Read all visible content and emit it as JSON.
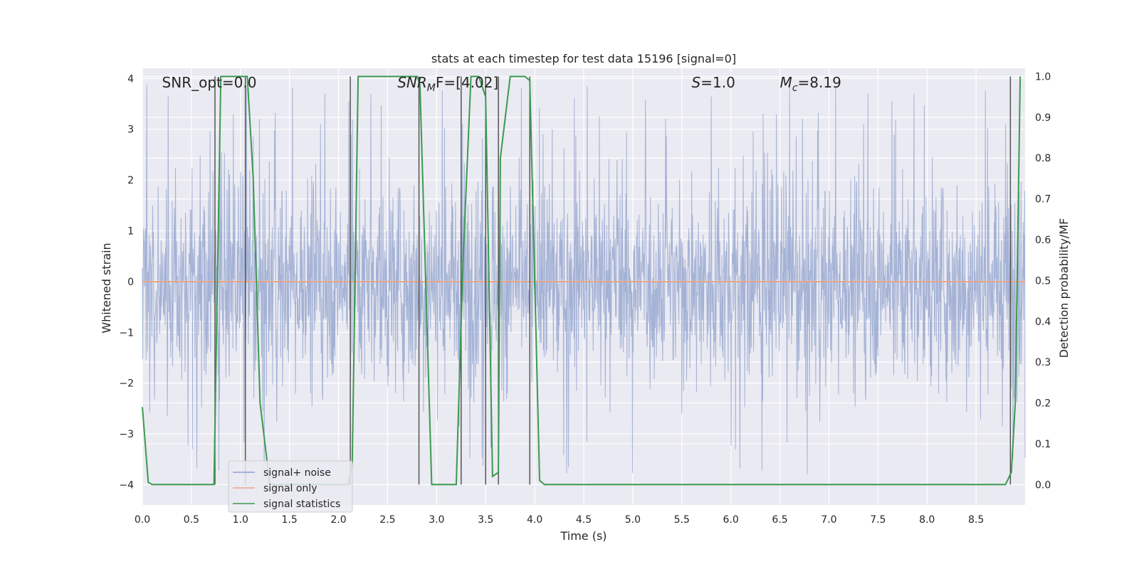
{
  "chart_data": {
    "type": "line",
    "title": "stats at each timestep for test data 15196 [signal=0]",
    "xlabel": "Time (s)",
    "ylabel": "Whitened strain",
    "ylabel_right": "Detection probability/MF",
    "xlim": [
      0.0,
      9.0
    ],
    "ylim": [
      -4.4,
      4.2
    ],
    "ylim_right": [
      -0.05,
      1.02
    ],
    "x_ticks": [
      "0.0",
      "0.5",
      "1.0",
      "1.5",
      "2.0",
      "2.5",
      "3.0",
      "3.5",
      "4.0",
      "4.5",
      "5.0",
      "5.5",
      "6.0",
      "6.5",
      "7.0",
      "7.5",
      "8.0",
      "8.5"
    ],
    "y_ticks": [
      "4",
      "3",
      "2",
      "1",
      "0",
      "−1",
      "−2",
      "−3",
      "−4"
    ],
    "y_right_ticks": [
      "1.0",
      "0.9",
      "0.8",
      "0.7",
      "0.6",
      "0.5",
      "0.4",
      "0.3",
      "0.2",
      "0.1",
      "0.0"
    ],
    "grid": true,
    "legend_position": "lower-left",
    "annotations": [
      {
        "id": "snr_opt",
        "text": "SNR_opt=0.0",
        "x": 0.2
      },
      {
        "id": "snr_mf_label",
        "text": "SNR",
        "sub": "M",
        "tail": "F=[4.02]",
        "x": 2.6
      },
      {
        "id": "s_value",
        "text": "S",
        "tail": "=1.0",
        "x": 5.6
      },
      {
        "id": "mc_value",
        "text": "M",
        "sub": "c",
        "tail": "=8.19",
        "x": 6.5
      }
    ],
    "series": [
      {
        "name": "signal+ noise",
        "color": "#8c9fcb",
        "kind": "noise",
        "x_range": [
          0.0,
          9.0
        ],
        "envelope_typical": 2.2,
        "envelope_max": 3.9,
        "opacity": 0.75
      },
      {
        "name": "signal only",
        "color": "#e6a58a",
        "kind": "constant",
        "value": 0.0
      },
      {
        "name": "signal statistics",
        "color": "#3c9a4f",
        "axis": "right",
        "x": [
          0.0,
          0.06,
          0.1,
          0.3,
          0.5,
          0.73,
          0.8,
          0.82,
          1.07,
          1.13,
          1.2,
          1.3,
          1.5,
          1.8,
          2.1,
          2.14,
          2.2,
          2.8,
          2.83,
          2.95,
          3.05,
          3.2,
          3.27,
          3.35,
          3.43,
          3.5,
          3.57,
          3.63,
          3.65,
          3.75,
          3.9,
          3.95,
          4.05,
          4.1,
          4.2,
          5.0,
          6.0,
          7.0,
          8.0,
          8.8,
          8.86,
          8.9,
          8.95
        ],
        "y": [
          0.19,
          0.005,
          0.0,
          0.0,
          0.0,
          0.0,
          1.0,
          1.0,
          1.0,
          0.75,
          0.2,
          0.0,
          0.0,
          0.0,
          0.0,
          0.05,
          1.0,
          1.0,
          0.98,
          0.0,
          0.0,
          0.0,
          0.55,
          1.0,
          1.0,
          0.95,
          0.02,
          0.03,
          0.8,
          1.0,
          1.0,
          0.99,
          0.01,
          0.0,
          0.0,
          0.0,
          0.0,
          0.0,
          0.0,
          0.0,
          0.03,
          0.2,
          1.0
        ]
      },
      {
        "name": "",
        "color": "#555555",
        "kind": "vlines",
        "axis": "right",
        "ymin": 0.0,
        "ymax": 1.0,
        "x": [
          0.74,
          1.05,
          2.12,
          2.82,
          3.25,
          3.5,
          3.63,
          3.95,
          8.85
        ]
      }
    ]
  },
  "colors": {
    "background": "#eaeaf2",
    "grid": "#ffffff",
    "noise": "#8c9fcb",
    "signal": "#e6a58a",
    "stats": "#3c9a4f",
    "vline": "#555555"
  },
  "legend": [
    {
      "label": "signal+ noise",
      "color": "#8c9fcb"
    },
    {
      "label": "signal only",
      "color": "#e6a58a"
    },
    {
      "label": "signal statistics",
      "color": "#3c9a4f"
    }
  ]
}
